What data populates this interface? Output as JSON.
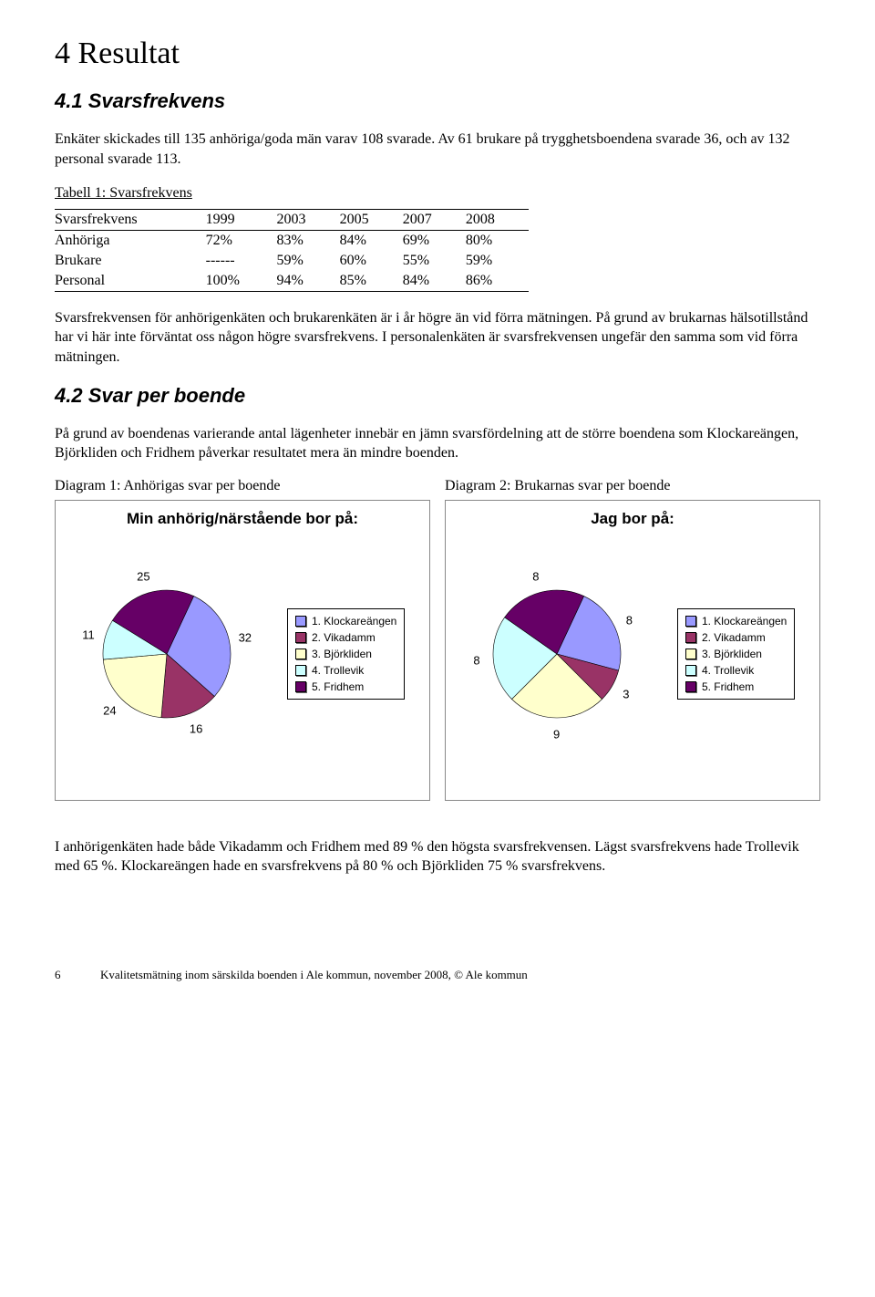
{
  "h1": "4 Resultat",
  "s41_title": "4.1 Svarsfrekvens",
  "s41_p1": "Enkäter skickades till 135 anhöriga/goda män varav 108 svarade. Av 61 brukare på trygghetsboendena svarade 36, och av 132 personal svarade 113.",
  "table": {
    "caption_line1": "Tabell 1: Svarsfrekvens",
    "header": [
      "Svarsfrekvens",
      "1999",
      "2003",
      "2005",
      "2007",
      "2008"
    ],
    "rows": [
      [
        "Anhöriga",
        "72%",
        "83%",
        "84%",
        "69%",
        "80%"
      ],
      [
        "Brukare",
        "------",
        "59%",
        "60%",
        "55%",
        "59%"
      ],
      [
        "Personal",
        "100%",
        "94%",
        "85%",
        "84%",
        "86%"
      ]
    ]
  },
  "s41_p2": "Svarsfrekvensen för anhörigenkäten och brukarenkäten är i år högre än vid förra mätningen. På grund av brukarnas hälsotillstånd har vi här inte förväntat oss någon högre svarsfrekvens. I personalenkäten är svarsfrekvensen ungefär den samma som vid förra mätningen.",
  "s42_title": "4.2 Svar per boende",
  "s42_p1": "På grund av boendenas varierande antal lägenheter innebär en jämn svarsfördelning att de större boendena som Klockareängen, Björkliden och Fridhem påverkar resultatet mera än mindre boenden.",
  "diag1_label": "Diagram 1: Anhörigas svar per boende",
  "diag2_label": "Diagram 2: Brukarnas svar per boende",
  "legend_items": [
    "1. Klockareängen",
    "2. Vikadamm",
    "3. Björkliden",
    "4. Trollevik",
    "5. Fridhem"
  ],
  "colors": {
    "klockareangen": "#9999ff",
    "vikadamm": "#993366",
    "bjorkliden": "#ffffcc",
    "trollevik": "#ccffff",
    "fridhem": "#660066"
  },
  "pie1": {
    "title": "Min anhörig/närstående bor på:",
    "slices": [
      {
        "label": "32",
        "value": 32,
        "color": "#9999ff"
      },
      {
        "label": "16",
        "value": 16,
        "color": "#993366"
      },
      {
        "label": "24",
        "value": 24,
        "color": "#ffffcc"
      },
      {
        "label": "11",
        "value": 11,
        "color": "#ccffff"
      },
      {
        "label": "25",
        "value": 25,
        "color": "#660066"
      }
    ]
  },
  "pie2": {
    "title": "Jag bor på:",
    "slices": [
      {
        "label": "8",
        "value": 8,
        "color": "#9999ff"
      },
      {
        "label": "3",
        "value": 3,
        "color": "#993366"
      },
      {
        "label": "9",
        "value": 9,
        "color": "#ffffcc"
      },
      {
        "label": "8",
        "value": 8,
        "color": "#ccffff"
      },
      {
        "label": "8",
        "value": 8,
        "color": "#660066"
      }
    ]
  },
  "s42_p2": "I anhörigenkäten hade både Vikadamm och Fridhem med 89 % den högsta svarsfrekvensen. Lägst svarsfrekvens hade Trollevik med 65 %. Klockareängen hade en svarsfrekvens på 80 % och Björkliden 75 % svarsfrekvens.",
  "footer_page": "6",
  "footer_text": "Kvalitetsmätning inom särskilda boenden i Ale kommun, november 2008, © Ale kommun"
}
